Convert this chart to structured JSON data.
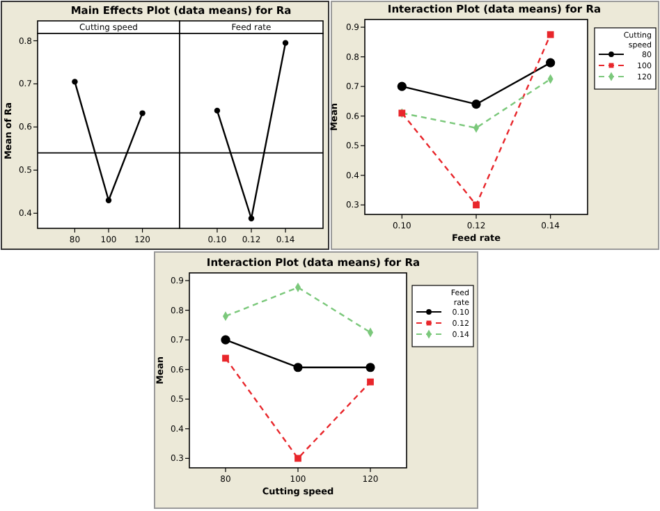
{
  "chart_data": [
    {
      "type": "line",
      "title": "Main Effects Plot (data means) for Ra",
      "subtitle": "Cutting speed",
      "ylabel": "Mean of Ra",
      "categories": [
        "80",
        "100",
        "120"
      ],
      "series": [
        {
          "color": "#000000",
          "values": [
            0.705,
            0.43,
            0.632
          ],
          "marker": "circle",
          "line_style": "solid"
        }
      ],
      "ylim": [
        0.365,
        0.817
      ],
      "yticks": [
        0.4,
        0.5,
        0.6,
        0.7,
        0.8
      ],
      "ref_lines": [
        {
          "axis": "y",
          "value": 0.54,
          "color": "#000000"
        }
      ],
      "grid": false,
      "legend": false
    },
    {
      "type": "line",
      "subtitle": "Feed rate",
      "categories": [
        "0.10",
        "0.12",
        "0.14"
      ],
      "series": [
        {
          "color": "#000000",
          "values": [
            0.638,
            0.388,
            0.795
          ],
          "marker": "circle",
          "line_style": "solid"
        }
      ],
      "ylim": [
        0.365,
        0.817
      ],
      "tick_labels": "x",
      "ref_lines": [
        {
          "axis": "y",
          "value": 0.54,
          "color": "#000000"
        }
      ],
      "grid": false,
      "legend": false
    },
    {
      "type": "line",
      "title": "Interaction Plot (data means) for Ra",
      "xlabel": "Feed rate",
      "ylabel": "Mean",
      "legend_title": "Cutting speed",
      "categories": [
        "0.10",
        "0.12",
        "0.14"
      ],
      "series": [
        {
          "name": "80",
          "color": "#000000",
          "values": [
            0.7,
            0.64,
            0.78
          ],
          "marker": "circle",
          "line_style": "solid"
        },
        {
          "name": "100",
          "color": "#e8262b",
          "values": [
            0.61,
            0.3,
            0.875
          ],
          "marker": "square",
          "line_style": "dashed"
        },
        {
          "name": "120",
          "color": "#7bc87b",
          "values": [
            0.61,
            0.56,
            0.725
          ],
          "marker": "diamond",
          "line_style": "dashed"
        }
      ],
      "ylim": [
        0.268,
        0.926
      ],
      "yticks": [
        0.3,
        0.4,
        0.5,
        0.6,
        0.7,
        0.8,
        0.9
      ],
      "grid": false,
      "legend": "top right"
    },
    {
      "type": "line",
      "title": "Interaction Plot (data means) for Ra",
      "xlabel": "Cutting speed",
      "ylabel": "Mean",
      "legend_title": "Feed rate",
      "categories": [
        "80",
        "100",
        "120"
      ],
      "series": [
        {
          "name": "0.10",
          "color": "#000000",
          "values": [
            0.7,
            0.607,
            0.607
          ],
          "marker": "circle",
          "line_style": "solid"
        },
        {
          "name": "0.12",
          "color": "#e8262b",
          "values": [
            0.638,
            0.3,
            0.558
          ],
          "marker": "square",
          "line_style": "dashed"
        },
        {
          "name": "0.14",
          "color": "#7bc87b",
          "values": [
            0.78,
            0.877,
            0.725
          ],
          "marker": "diamond",
          "line_style": "dashed"
        }
      ],
      "ylim": [
        0.268,
        0.926
      ],
      "yticks": [
        0.3,
        0.4,
        0.5,
        0.6,
        0.7,
        0.8,
        0.9
      ],
      "grid": false,
      "legend": "top right"
    }
  ]
}
